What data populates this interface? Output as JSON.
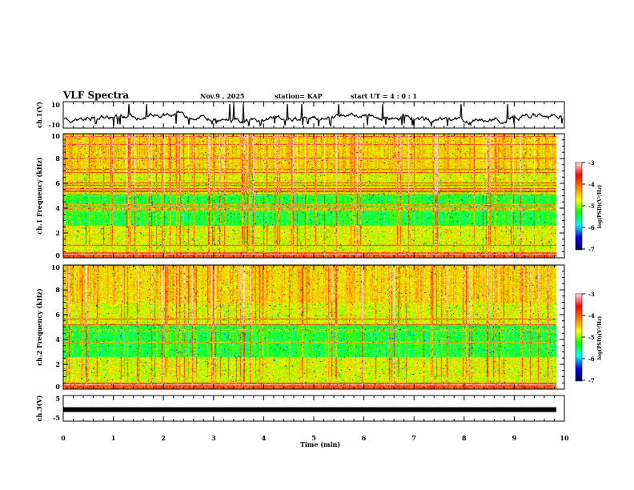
{
  "header": {
    "title": "VLF Spectra",
    "date": "Nov.9  , 2025",
    "station": "station= KAP",
    "start_ut": "start  UT  =   4 : 0  : 1"
  },
  "chart_data": {
    "type": "heatmap",
    "xlabel": "Time  (min)",
    "xlim": [
      0,
      10
    ],
    "xticks": [
      "0",
      "1",
      "2",
      "3",
      "4",
      "5",
      "6",
      "7",
      "8",
      "9",
      "10"
    ],
    "panels": [
      {
        "name": "ch1-waveform",
        "ylabel": "ch.1(V)",
        "ylim": [
          -10,
          10
        ],
        "yticks": [
          "10",
          "-10"
        ],
        "type": "line"
      },
      {
        "name": "ch1-spectrogram",
        "ylabel": "ch.1 Frequency (kHz)",
        "ylim": [
          0,
          10
        ],
        "yticks": [
          "0",
          "2",
          "4",
          "6",
          "8",
          "10"
        ],
        "type": "heatmap"
      },
      {
        "name": "ch2-spectrogram",
        "ylabel": "ch.2 Frequency (kHz)",
        "ylim": [
          0,
          10
        ],
        "yticks": [
          "0",
          "2",
          "4",
          "6",
          "8",
          "10"
        ],
        "type": "heatmap"
      },
      {
        "name": "ch3-waveform",
        "ylabel": "ch.3(V)",
        "ylim": [
          -5,
          5
        ],
        "yticks": [
          "5",
          "-5"
        ],
        "type": "line",
        "constant_value": -0.5
      }
    ],
    "colorbar": {
      "label": "log(PSD)(V²/Hz)",
      "range": [
        -7,
        -3
      ],
      "ticks": [
        "-3",
        "-4",
        "-5",
        "-6",
        "-7"
      ],
      "colors": [
        "#000060",
        "#0000ff",
        "#00ffff",
        "#00ff00",
        "#ffff00",
        "#ff8000",
        "#ff0000",
        "#ffd8e0"
      ]
    }
  }
}
